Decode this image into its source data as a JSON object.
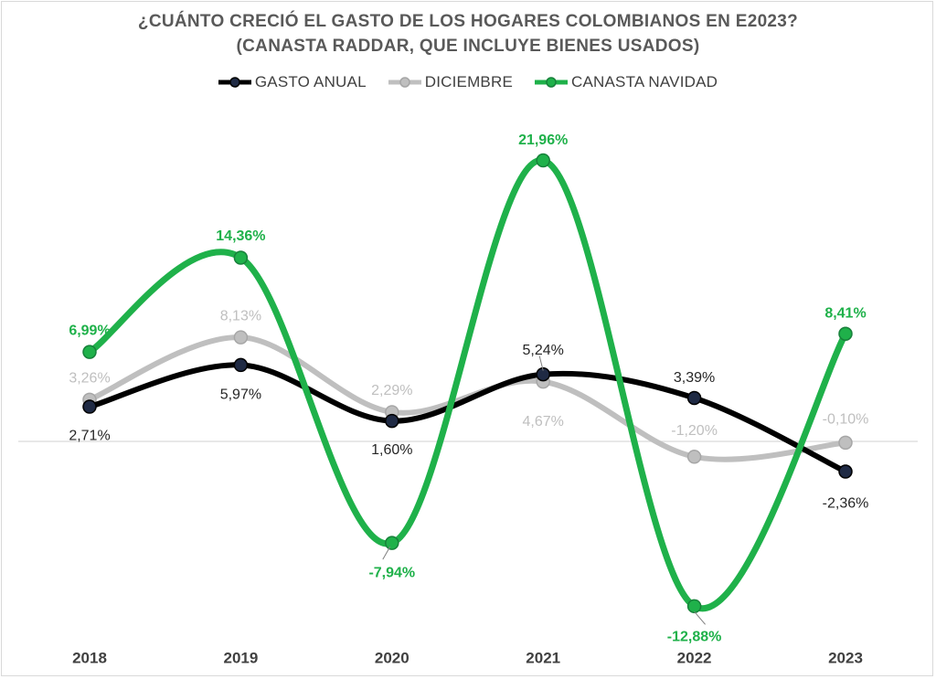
{
  "chart_data": {
    "type": "line",
    "title": "¿CUÁNTO CRECIÓ EL GASTO DE LOS HOGARES COLOMBIANOS EN E2023?",
    "subtitle": "(CANASTA RADDAR, QUE INCLUYE BIENES USADOS)",
    "categories": [
      "2018",
      "2019",
      "2020",
      "2021",
      "2022",
      "2023"
    ],
    "series": [
      {
        "name": "GASTO ANUAL",
        "color": "#000000",
        "values": [
          2.71,
          5.97,
          1.6,
          5.24,
          3.39,
          -2.36
        ],
        "labels": [
          "2,71%",
          "5,97%",
          "1,60%",
          "5,24%",
          "3,39%",
          "-2,36%"
        ]
      },
      {
        "name": "DICIEMBRE",
        "color": "#bfbfbf",
        "values": [
          3.26,
          8.13,
          2.29,
          4.67,
          -1.2,
          -0.1
        ],
        "labels": [
          "3,26%",
          "8,13%",
          "2,29%",
          "4,67%",
          "-1,20%",
          "-0,10%"
        ]
      },
      {
        "name": "CANASTA NAVIDAD",
        "color": "#1fb14a",
        "values": [
          6.99,
          14.36,
          -7.94,
          21.96,
          -12.88,
          8.41
        ],
        "labels": [
          "6,99%",
          "14,36%",
          "-7,94%",
          "21,96%",
          "-12,88%",
          "8,41%"
        ]
      }
    ],
    "legend_position": "top-center",
    "grid": false,
    "baseline": 0
  }
}
